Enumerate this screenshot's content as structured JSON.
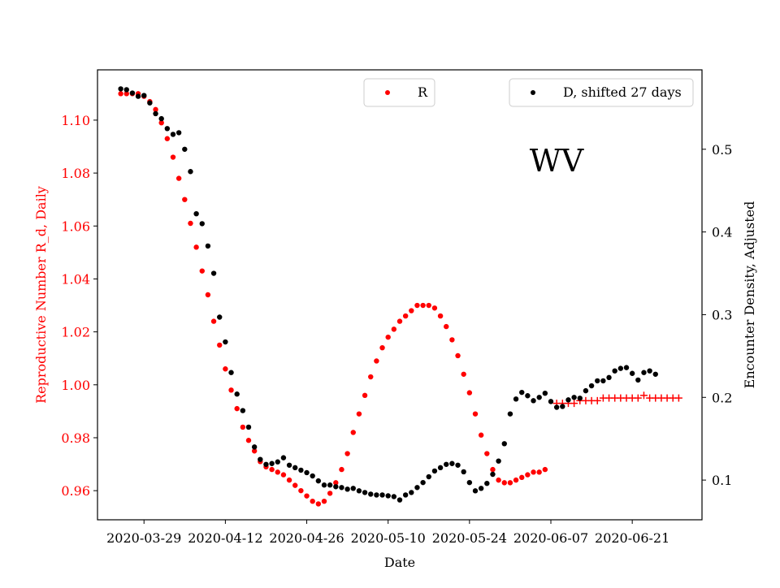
{
  "chart_data": {
    "type": "scatter",
    "annotation": "WV",
    "xlabel": "Date",
    "ylabel_left": "Reproductive Number R_d, Daily",
    "ylabel_right": "Encounter Density, Adjusted",
    "x_ticks": [
      "2020-03-29",
      "2020-04-12",
      "2020-04-26",
      "2020-05-10",
      "2020-05-24",
      "2020-06-07",
      "2020-06-21"
    ],
    "y_left_ticks": [
      "0.96",
      "0.98",
      "1.00",
      "1.02",
      "1.04",
      "1.06",
      "1.08",
      "1.10"
    ],
    "y_right_ticks": [
      "0.1",
      "0.2",
      "0.3",
      "0.4",
      "0.5"
    ],
    "xlim": [
      "2020-03-21",
      "2020-07-03"
    ],
    "ylim_left": [
      0.949,
      1.119
    ],
    "ylim_right": [
      0.052,
      0.596
    ],
    "grid": false,
    "left_axis_color": "#ff0000",
    "right_axis_color": "#000000",
    "legend": {
      "r_label": "R",
      "d_label": "D, shifted 27 days",
      "r_location": "top-center",
      "d_location": "top-right"
    },
    "series": [
      {
        "name": "R",
        "axis": "left",
        "marker": "dot",
        "color": "#ff0000",
        "points": [
          [
            "2020-03-25",
            1.11
          ],
          [
            "2020-03-26",
            1.11
          ],
          [
            "2020-03-27",
            1.11
          ],
          [
            "2020-03-28",
            1.11
          ],
          [
            "2020-03-29",
            1.109
          ],
          [
            "2020-03-30",
            1.107
          ],
          [
            "2020-03-31",
            1.104
          ],
          [
            "2020-04-01",
            1.099
          ],
          [
            "2020-04-02",
            1.093
          ],
          [
            "2020-04-03",
            1.086
          ],
          [
            "2020-04-04",
            1.078
          ],
          [
            "2020-04-05",
            1.07
          ],
          [
            "2020-04-06",
            1.061
          ],
          [
            "2020-04-07",
            1.052
          ],
          [
            "2020-04-08",
            1.043
          ],
          [
            "2020-04-09",
            1.034
          ],
          [
            "2020-04-10",
            1.024
          ],
          [
            "2020-04-11",
            1.015
          ],
          [
            "2020-04-12",
            1.006
          ],
          [
            "2020-04-13",
            0.998
          ],
          [
            "2020-04-14",
            0.991
          ],
          [
            "2020-04-15",
            0.984
          ],
          [
            "2020-04-16",
            0.979
          ],
          [
            "2020-04-17",
            0.975
          ],
          [
            "2020-04-18",
            0.971
          ],
          [
            "2020-04-19",
            0.969
          ],
          [
            "2020-04-20",
            0.968
          ],
          [
            "2020-04-21",
            0.967
          ],
          [
            "2020-04-22",
            0.966
          ],
          [
            "2020-04-23",
            0.964
          ],
          [
            "2020-04-24",
            0.962
          ],
          [
            "2020-04-25",
            0.96
          ],
          [
            "2020-04-26",
            0.958
          ],
          [
            "2020-04-27",
            0.956
          ],
          [
            "2020-04-28",
            0.955
          ],
          [
            "2020-04-29",
            0.956
          ],
          [
            "2020-04-30",
            0.959
          ],
          [
            "2020-05-01",
            0.963
          ],
          [
            "2020-05-02",
            0.968
          ],
          [
            "2020-05-03",
            0.974
          ],
          [
            "2020-05-04",
            0.982
          ],
          [
            "2020-05-05",
            0.989
          ],
          [
            "2020-05-06",
            0.996
          ],
          [
            "2020-05-07",
            1.003
          ],
          [
            "2020-05-08",
            1.009
          ],
          [
            "2020-05-09",
            1.014
          ],
          [
            "2020-05-10",
            1.018
          ],
          [
            "2020-05-11",
            1.021
          ],
          [
            "2020-05-12",
            1.024
          ],
          [
            "2020-05-13",
            1.026
          ],
          [
            "2020-05-14",
            1.028
          ],
          [
            "2020-05-15",
            1.03
          ],
          [
            "2020-05-16",
            1.03
          ],
          [
            "2020-05-17",
            1.03
          ],
          [
            "2020-05-18",
            1.029
          ],
          [
            "2020-05-19",
            1.026
          ],
          [
            "2020-05-20",
            1.022
          ],
          [
            "2020-05-21",
            1.017
          ],
          [
            "2020-05-22",
            1.011
          ],
          [
            "2020-05-23",
            1.004
          ],
          [
            "2020-05-24",
            0.997
          ],
          [
            "2020-05-25",
            0.989
          ],
          [
            "2020-05-26",
            0.981
          ],
          [
            "2020-05-27",
            0.974
          ],
          [
            "2020-05-28",
            0.968
          ],
          [
            "2020-05-29",
            0.964
          ],
          [
            "2020-05-30",
            0.963
          ],
          [
            "2020-05-31",
            0.963
          ],
          [
            "2020-06-01",
            0.964
          ],
          [
            "2020-06-02",
            0.965
          ],
          [
            "2020-06-03",
            0.966
          ],
          [
            "2020-06-04",
            0.967
          ],
          [
            "2020-06-05",
            0.967
          ],
          [
            "2020-06-06",
            0.968
          ]
        ]
      },
      {
        "name": "R",
        "axis": "left",
        "marker": "plus",
        "color": "#ff0000",
        "points": [
          [
            "2020-06-08",
            0.993
          ],
          [
            "2020-06-09",
            0.993
          ],
          [
            "2020-06-10",
            0.993
          ],
          [
            "2020-06-11",
            0.993
          ],
          [
            "2020-06-12",
            0.994
          ],
          [
            "2020-06-13",
            0.994
          ],
          [
            "2020-06-14",
            0.994
          ],
          [
            "2020-06-15",
            0.994
          ],
          [
            "2020-06-16",
            0.995
          ],
          [
            "2020-06-17",
            0.995
          ],
          [
            "2020-06-18",
            0.995
          ],
          [
            "2020-06-19",
            0.995
          ],
          [
            "2020-06-20",
            0.995
          ],
          [
            "2020-06-21",
            0.995
          ],
          [
            "2020-06-22",
            0.995
          ],
          [
            "2020-06-23",
            0.996
          ],
          [
            "2020-06-24",
            0.995
          ],
          [
            "2020-06-25",
            0.995
          ],
          [
            "2020-06-26",
            0.995
          ],
          [
            "2020-06-27",
            0.995
          ],
          [
            "2020-06-28",
            0.995
          ],
          [
            "2020-06-29",
            0.995
          ]
        ]
      },
      {
        "name": "D, shifted 27 days",
        "axis": "right",
        "marker": "dot",
        "color": "#000000",
        "points": [
          [
            "2020-03-25",
            0.573
          ],
          [
            "2020-03-26",
            0.572
          ],
          [
            "2020-03-27",
            0.568
          ],
          [
            "2020-03-28",
            0.564
          ],
          [
            "2020-03-29",
            0.565
          ],
          [
            "2020-03-30",
            0.556
          ],
          [
            "2020-03-31",
            0.543
          ],
          [
            "2020-04-01",
            0.537
          ],
          [
            "2020-04-02",
            0.525
          ],
          [
            "2020-04-03",
            0.518
          ],
          [
            "2020-04-04",
            0.52
          ],
          [
            "2020-04-05",
            0.5
          ],
          [
            "2020-04-06",
            0.473
          ],
          [
            "2020-04-07",
            0.422
          ],
          [
            "2020-04-08",
            0.41
          ],
          [
            "2020-04-09",
            0.383
          ],
          [
            "2020-04-10",
            0.35
          ],
          [
            "2020-04-11",
            0.297
          ],
          [
            "2020-04-12",
            0.267
          ],
          [
            "2020-04-13",
            0.23
          ],
          [
            "2020-04-14",
            0.204
          ],
          [
            "2020-04-15",
            0.184
          ],
          [
            "2020-04-16",
            0.164
          ],
          [
            "2020-04-17",
            0.14
          ],
          [
            "2020-04-18",
            0.125
          ],
          [
            "2020-04-19",
            0.119
          ],
          [
            "2020-04-20",
            0.12
          ],
          [
            "2020-04-21",
            0.122
          ],
          [
            "2020-04-22",
            0.127
          ],
          [
            "2020-04-23",
            0.118
          ],
          [
            "2020-04-24",
            0.115
          ],
          [
            "2020-04-25",
            0.112
          ],
          [
            "2020-04-26",
            0.109
          ],
          [
            "2020-04-27",
            0.105
          ],
          [
            "2020-04-28",
            0.099
          ],
          [
            "2020-04-29",
            0.094
          ],
          [
            "2020-04-30",
            0.094
          ],
          [
            "2020-05-01",
            0.092
          ],
          [
            "2020-05-02",
            0.091
          ],
          [
            "2020-05-03",
            0.089
          ],
          [
            "2020-05-04",
            0.09
          ],
          [
            "2020-05-05",
            0.087
          ],
          [
            "2020-05-06",
            0.085
          ],
          [
            "2020-05-07",
            0.083
          ],
          [
            "2020-05-08",
            0.082
          ],
          [
            "2020-05-09",
            0.082
          ],
          [
            "2020-05-10",
            0.081
          ],
          [
            "2020-05-11",
            0.08
          ],
          [
            "2020-05-12",
            0.076
          ],
          [
            "2020-05-13",
            0.082
          ],
          [
            "2020-05-14",
            0.085
          ],
          [
            "2020-05-15",
            0.091
          ],
          [
            "2020-05-16",
            0.097
          ],
          [
            "2020-05-17",
            0.104
          ],
          [
            "2020-05-18",
            0.111
          ],
          [
            "2020-05-19",
            0.115
          ],
          [
            "2020-05-20",
            0.119
          ],
          [
            "2020-05-21",
            0.12
          ],
          [
            "2020-05-22",
            0.118
          ],
          [
            "2020-05-23",
            0.11
          ],
          [
            "2020-05-24",
            0.097
          ],
          [
            "2020-05-25",
            0.087
          ],
          [
            "2020-05-26",
            0.09
          ],
          [
            "2020-05-27",
            0.096
          ],
          [
            "2020-05-28",
            0.107
          ],
          [
            "2020-05-29",
            0.123
          ],
          [
            "2020-05-30",
            0.144
          ],
          [
            "2020-05-31",
            0.18
          ],
          [
            "2020-06-01",
            0.198
          ],
          [
            "2020-06-02",
            0.206
          ],
          [
            "2020-06-03",
            0.202
          ],
          [
            "2020-06-04",
            0.196
          ],
          [
            "2020-06-05",
            0.2
          ],
          [
            "2020-06-06",
            0.205
          ],
          [
            "2020-06-07",
            0.195
          ],
          [
            "2020-06-08",
            0.188
          ],
          [
            "2020-06-09",
            0.189
          ],
          [
            "2020-06-10",
            0.197
          ],
          [
            "2020-06-11",
            0.2
          ],
          [
            "2020-06-12",
            0.199
          ],
          [
            "2020-06-13",
            0.208
          ],
          [
            "2020-06-14",
            0.214
          ],
          [
            "2020-06-15",
            0.22
          ],
          [
            "2020-06-16",
            0.22
          ],
          [
            "2020-06-17",
            0.224
          ],
          [
            "2020-06-18",
            0.232
          ],
          [
            "2020-06-19",
            0.235
          ],
          [
            "2020-06-20",
            0.236
          ],
          [
            "2020-06-21",
            0.229
          ],
          [
            "2020-06-22",
            0.221
          ],
          [
            "2020-06-23",
            0.23
          ],
          [
            "2020-06-24",
            0.232
          ],
          [
            "2020-06-25",
            0.228
          ]
        ]
      }
    ]
  }
}
